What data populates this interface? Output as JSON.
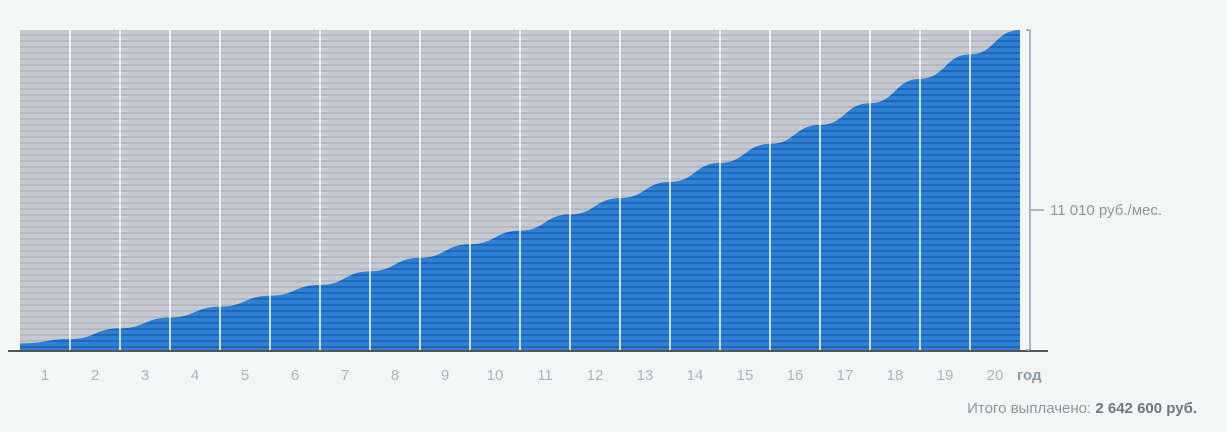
{
  "chart_data": {
    "type": "area",
    "x": [
      1,
      2,
      3,
      4,
      5,
      6,
      7,
      8,
      9,
      10,
      11,
      12,
      13,
      14,
      15,
      16,
      17,
      18,
      19,
      20
    ],
    "y_fraction_of_payment": [
      0.04,
      0.08,
      0.12,
      0.16,
      0.2,
      0.24,
      0.29,
      0.34,
      0.39,
      0.44,
      0.5,
      0.56,
      0.62,
      0.69,
      0.76,
      0.83,
      0.91,
      1.0,
      1.09,
      1.18
    ],
    "tick_labels": [
      "1",
      "2",
      "3",
      "4",
      "5",
      "6",
      "7",
      "8",
      "9",
      "10",
      "11",
      "12",
      "13",
      "14",
      "15",
      "16",
      "17",
      "18",
      "19",
      "20"
    ],
    "x_unit": "год",
    "payment_label": "11 010 руб./мес.",
    "series": [
      {
        "color": "#2a7ed4"
      },
      {
        "color": "#c5c9ce"
      }
    ],
    "grid": true
  },
  "footer": {
    "total_prefix": "Итого выплачено:",
    "total_value": "2 642 600 руб."
  }
}
